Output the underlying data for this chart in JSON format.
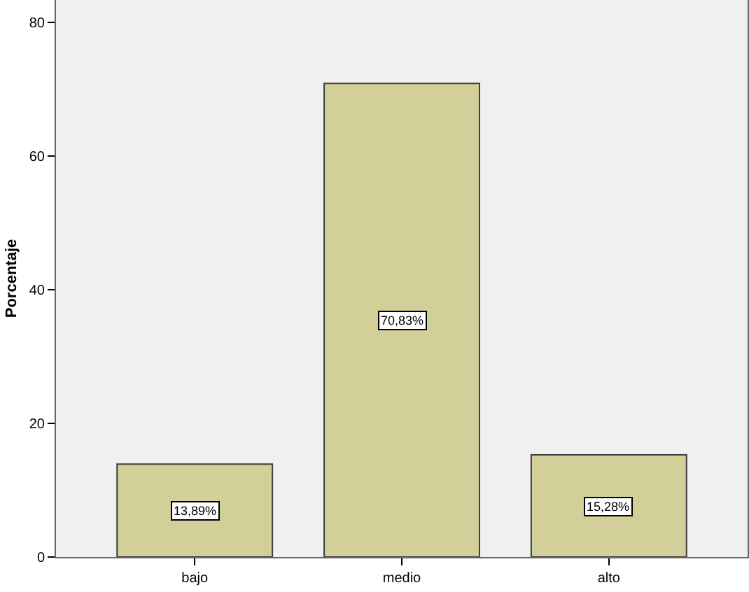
{
  "chart_data": {
    "type": "bar",
    "ylabel": "Porcentaje",
    "categories": [
      "bajo",
      "medio",
      "alto"
    ],
    "values": [
      13.89,
      70.83,
      15.28
    ],
    "color": "#d3cf98",
    "value_labels": [
      "13,89%",
      "70,83%",
      "15,28%"
    ],
    "ylim": [
      0,
      83.3
    ],
    "yticks": [
      0,
      20,
      40,
      60,
      80
    ],
    "grid": false
  }
}
